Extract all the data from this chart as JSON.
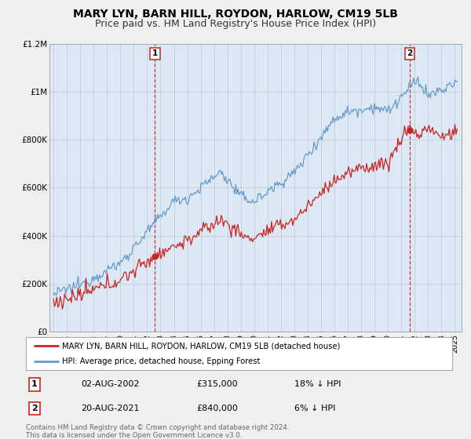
{
  "title": "MARY LYN, BARN HILL, ROYDON, HARLOW, CM19 5LB",
  "subtitle": "Price paid vs. HM Land Registry's House Price Index (HPI)",
  "title_fontsize": 10,
  "subtitle_fontsize": 9,
  "ylim": [
    0,
    1200000
  ],
  "yticks": [
    0,
    200000,
    400000,
    600000,
    800000,
    1000000,
    1200000
  ],
  "ytick_labels": [
    "£0",
    "£200K",
    "£400K",
    "£600K",
    "£800K",
    "£1M",
    "£1.2M"
  ],
  "background_color": "#f0f0f0",
  "plot_bg_color": "#dce9f5",
  "hpi_color": "#6699cc",
  "price_color": "#cc2222",
  "legend_label_price": "MARY LYN, BARN HILL, ROYDON, HARLOW, CM19 5LB (detached house)",
  "legend_label_hpi": "HPI: Average price, detached house, Epping Forest",
  "point1_x": 2002.58,
  "point1_y": 315000,
  "point2_x": 2021.63,
  "point2_y": 840000,
  "table_rows": [
    [
      "1",
      "02-AUG-2002",
      "£315,000",
      "18% ↓ HPI"
    ],
    [
      "2",
      "20-AUG-2021",
      "£840,000",
      "6% ↓ HPI"
    ]
  ],
  "footer": "Contains HM Land Registry data © Crown copyright and database right 2024.\nThis data is licensed under the Open Government Licence v3.0.",
  "xmin": 1994.7,
  "xmax": 2025.5
}
